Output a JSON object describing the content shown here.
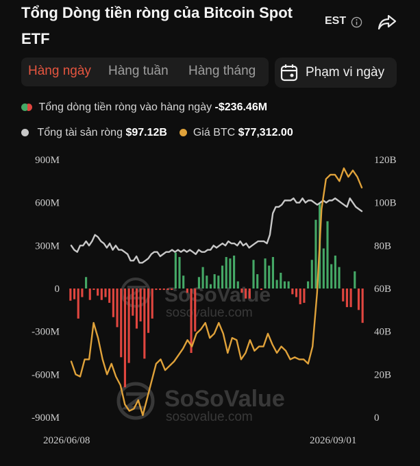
{
  "header": {
    "title": "Tổng Dòng tiền ròng của Bitcoin Spot ETF",
    "timezone": "EST"
  },
  "tabs": [
    {
      "label": "Hàng ngày",
      "active": true
    },
    {
      "label": "Hàng tuần",
      "active": false
    },
    {
      "label": "Hàng tháng",
      "active": false
    }
  ],
  "range_button": {
    "label": "Phạm vi ngày"
  },
  "legend": {
    "daily_label": "Tổng dòng tiền ròng vào hàng ngày",
    "daily_value": "-$236.46M",
    "assets_label": "Tổng tài sản ròng",
    "assets_value": "$97.12B",
    "btc_label": "Giá BTC",
    "btc_value": "$77,312.00"
  },
  "watermark": {
    "brand": "SoSoValue",
    "url": "sosovalue.com"
  },
  "colors": {
    "inflow": "#45a866",
    "outflow": "#e0463f",
    "assets_line": "#c8c8c8",
    "btc_line": "#e0a23a",
    "active_tab": "#e5553f"
  },
  "chart_data": {
    "type": "bar",
    "x_start_label": "2026/06/08",
    "x_end_label": "2026/09/01",
    "left_axis": {
      "ticks": [
        "900M",
        "600M",
        "300M",
        "0",
        "-300M",
        "-600M",
        "-900M"
      ],
      "ylim": [
        -900,
        900
      ],
      "unit": "M"
    },
    "right_axis": {
      "ticks": [
        "120B",
        "100B",
        "80B",
        "60B",
        "40B",
        "20B",
        "0"
      ],
      "ylim": [
        0,
        120
      ],
      "unit": "B"
    },
    "series": [
      {
        "name": "Tổng dòng tiền ròng vào hàng ngày",
        "kind": "bar",
        "axis": "left",
        "values": [
          -85,
          -75,
          -210,
          -60,
          80,
          -80,
          -10,
          -50,
          -80,
          -60,
          -100,
          -200,
          -270,
          -480,
          -690,
          -520,
          -190,
          -280,
          -230,
          -490,
          -310,
          -210,
          -10,
          -10,
          -10,
          -10,
          -10,
          250,
          220,
          90,
          -30,
          -450,
          -300,
          80,
          150,
          90,
          30,
          100,
          90,
          160,
          220,
          210,
          230,
          50,
          -30,
          -70,
          -70,
          200,
          100,
          -10,
          210,
          160,
          220,
          60,
          110,
          50,
          50,
          -40,
          -60,
          -110,
          -100,
          50,
          200,
          480,
          600,
          280,
          470,
          170,
          230,
          150,
          -90,
          -130,
          -130,
          120,
          -150,
          -240
        ]
      },
      {
        "name": "Tổng tài sản ròng",
        "kind": "line",
        "axis": "right",
        "values": [
          80,
          78,
          77,
          80,
          80,
          82,
          80,
          82,
          85,
          84,
          82,
          81,
          79,
          81,
          78,
          80,
          78,
          78,
          77,
          76,
          73,
          73,
          75,
          72,
          72,
          73,
          74,
          76,
          77,
          77,
          75,
          76,
          77,
          77,
          78,
          77,
          78,
          77,
          78,
          77,
          78,
          77,
          76,
          78,
          77,
          77,
          78,
          78,
          80,
          79,
          80,
          81,
          80,
          82,
          81,
          81,
          80,
          82,
          80,
          81,
          79,
          80,
          81,
          82,
          82,
          82,
          81,
          85,
          95,
          98,
          98,
          99,
          101,
          101,
          101,
          102,
          100,
          100,
          102,
          100,
          101,
          101,
          100,
          99,
          100,
          101,
          100,
          101,
          101,
          102,
          101,
          100,
          99,
          98,
          102,
          100,
          98,
          97,
          96
        ]
      },
      {
        "name": "Giá BTC",
        "kind": "line",
        "axis": "right",
        "values": [
          26,
          20,
          19,
          27,
          27,
          44,
          37,
          27,
          20,
          25,
          19,
          15,
          6,
          3,
          4,
          8,
          1,
          9,
          17,
          25,
          27,
          22,
          24,
          26,
          29,
          32,
          36,
          33,
          39,
          41,
          44,
          37,
          39,
          44,
          39,
          30,
          37,
          36,
          27,
          30,
          36,
          31,
          33,
          33,
          39,
          34,
          30,
          33,
          31,
          27,
          28,
          27,
          27,
          25,
          33,
          58,
          97,
          111,
          113,
          113,
          110,
          116,
          112,
          115,
          112,
          107
        ]
      }
    ]
  }
}
